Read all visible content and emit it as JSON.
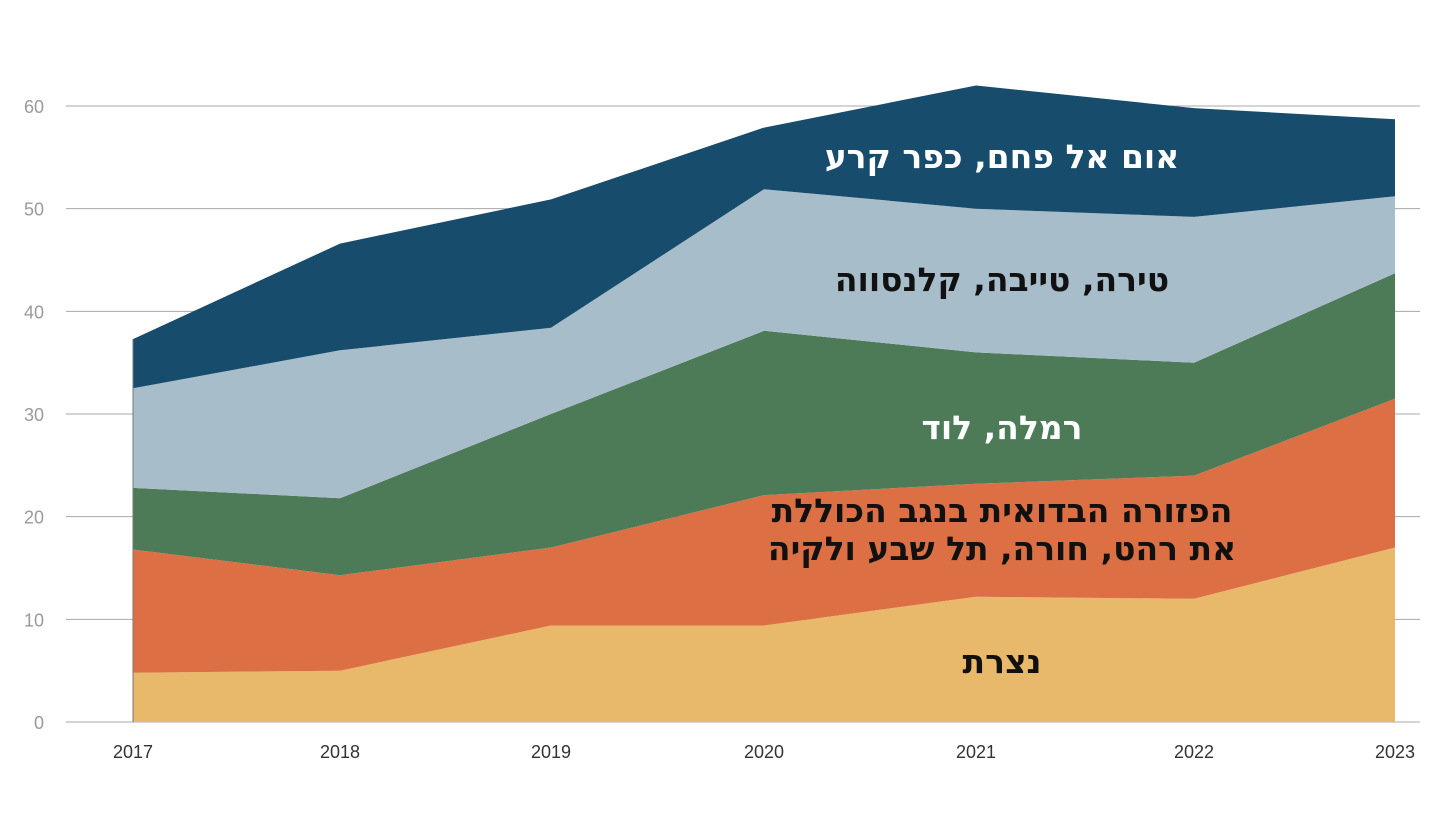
{
  "chart_data": {
    "type": "area",
    "stacked": true,
    "title": "",
    "xlabel": "",
    "ylabel": "",
    "x": [
      "2017",
      "2018",
      "2019",
      "2020",
      "2021",
      "2022",
      "2023"
    ],
    "ylim": [
      0,
      60
    ],
    "yticks": [
      0,
      10,
      20,
      30,
      40,
      50,
      60
    ],
    "grid": true,
    "legend": "inline labels",
    "series": [
      {
        "name": "נצרת",
        "values": [
          4.8,
          5.0,
          9.4,
          9.4,
          12.2,
          12.0,
          17.0
        ],
        "color": "#e8b96b",
        "label_color": "#111111",
        "label_lines": [
          "נצרת"
        ]
      },
      {
        "name": "הפזורה הבדואית בנגב הכוללת את רהט, חורה, תל שבע ולקיה",
        "values": [
          12.0,
          9.3,
          7.6,
          12.7,
          11.0,
          12.0,
          14.5
        ],
        "color": "#dc7044",
        "label_color": "#111111",
        "label_lines": [
          "הפזורה הבדואית בנגב הכוללת",
          "את רהט, חורה, תל שבע ולקיה"
        ]
      },
      {
        "name": "רמלה, לוד",
        "values": [
          6.0,
          7.5,
          13.0,
          16.0,
          12.8,
          11.0,
          12.2
        ],
        "color": "#4d7a57",
        "label_color": "#ffffff",
        "label_lines": [
          "רמלה, לוד"
        ]
      },
      {
        "name": "טירה, טייבה, קלנסווה",
        "values": [
          9.7,
          14.4,
          8.4,
          13.8,
          14.0,
          14.2,
          7.5
        ],
        "color": "#a7bdca",
        "label_color": "#111111",
        "label_lines": [
          "טירה, טייבה, קלנסווה"
        ]
      },
      {
        "name": "אום אל פחם, כפר קרע",
        "values": [
          4.8,
          10.4,
          12.5,
          6.0,
          12.0,
          10.6,
          7.5
        ],
        "color": "#174c6c",
        "label_color": "#ffffff",
        "label_lines": [
          "אום אל פחם, כפר קרע"
        ]
      }
    ]
  }
}
